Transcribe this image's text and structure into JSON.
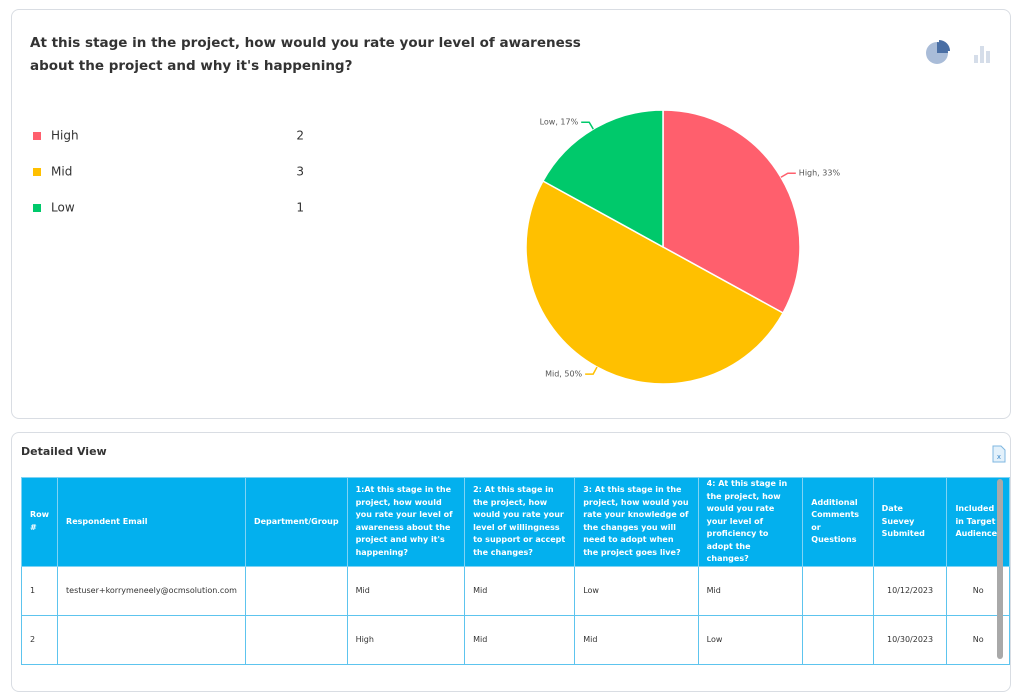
{
  "chart_data": {
    "type": "pie",
    "title": "At this stage in the project, how would you rate your level of awareness about the project and why it's happening?",
    "categories": [
      "High",
      "Mid",
      "Low"
    ],
    "values": [
      33,
      50,
      17
    ],
    "value_labels": [
      "High, 33%",
      "Mid, 50%",
      "Low, 17%"
    ],
    "counts": [
      2,
      3,
      1
    ],
    "colors": [
      "#ff5f6d",
      "#ffc000",
      "#00c96b"
    ]
  },
  "table": {
    "title": "Detailed View",
    "header": [
      "Row #",
      "Respondent Email",
      "Department/Group",
      "1:At this stage in the project, how would you rate your level of awareness about the project and why it's happening?",
      "2: At this stage in the project, how would you rate your level of willingness to support or accept the changes?",
      "3: At this stage in the project, how would you rate your knowledge of the changes you will need to adopt when the project goes live?",
      "4: At this stage in the project, how would you rate your level of proficiency to adopt the changes?",
      "Additional Comments or Questions",
      "Date Suevey Submited",
      "Included in Target Audience"
    ],
    "rows": [
      [
        "1",
        "testuser+korrymeneely@ocmsolution.com",
        null,
        "Mid",
        "Mid",
        "Low",
        "Mid",
        null,
        "10/12/2023",
        "No"
      ],
      [
        "2",
        null,
        null,
        "High",
        "Mid",
        "Mid",
        "Low",
        null,
        "10/30/2023",
        "No"
      ]
    ]
  }
}
